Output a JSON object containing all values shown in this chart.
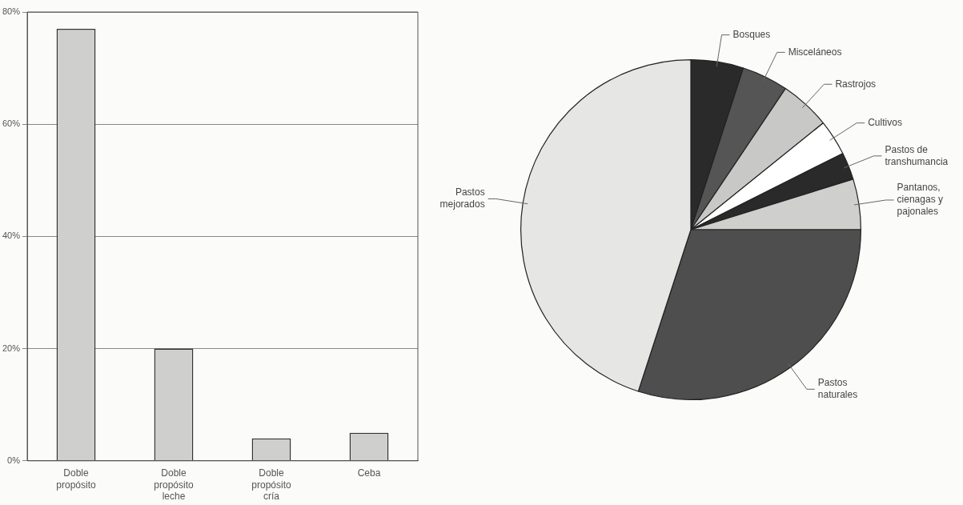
{
  "chart_data": [
    {
      "type": "bar",
      "categories": [
        "Doble propósito",
        "Doble propósito leche",
        "Doble propósito cría",
        "Ceba"
      ],
      "values": [
        77,
        20,
        4,
        5
      ],
      "color": "#cfcfcd",
      "ylim": [
        0,
        80
      ],
      "yticks": [
        {
          "value": 0,
          "label": "0%"
        },
        {
          "value": 20,
          "label": "20%"
        },
        {
          "value": 40,
          "label": "40%"
        },
        {
          "value": 60,
          "label": "60%"
        },
        {
          "value": 80,
          "label": "80%"
        }
      ],
      "grid": "y",
      "legend": false
    },
    {
      "type": "pie",
      "categories": [
        "Bosques",
        "Misceláneos",
        "Rastrojos",
        "Cultivos",
        "Pastos de transhumancia",
        "Pantanos, cienagas y pajonales",
        "Pastos naturales",
        "Pastos mejorados"
      ],
      "values": [
        5,
        4.4,
        4.8,
        3.4,
        2.6,
        4.8,
        30,
        45
      ],
      "colors": [
        "#2a2a2a",
        "#555555",
        "#c8c8c6",
        "#ffffff",
        "#2a2a2a",
        "#cfcfcd",
        "#4e4e4e",
        "#e6e6e4"
      ],
      "legend": false
    }
  ]
}
